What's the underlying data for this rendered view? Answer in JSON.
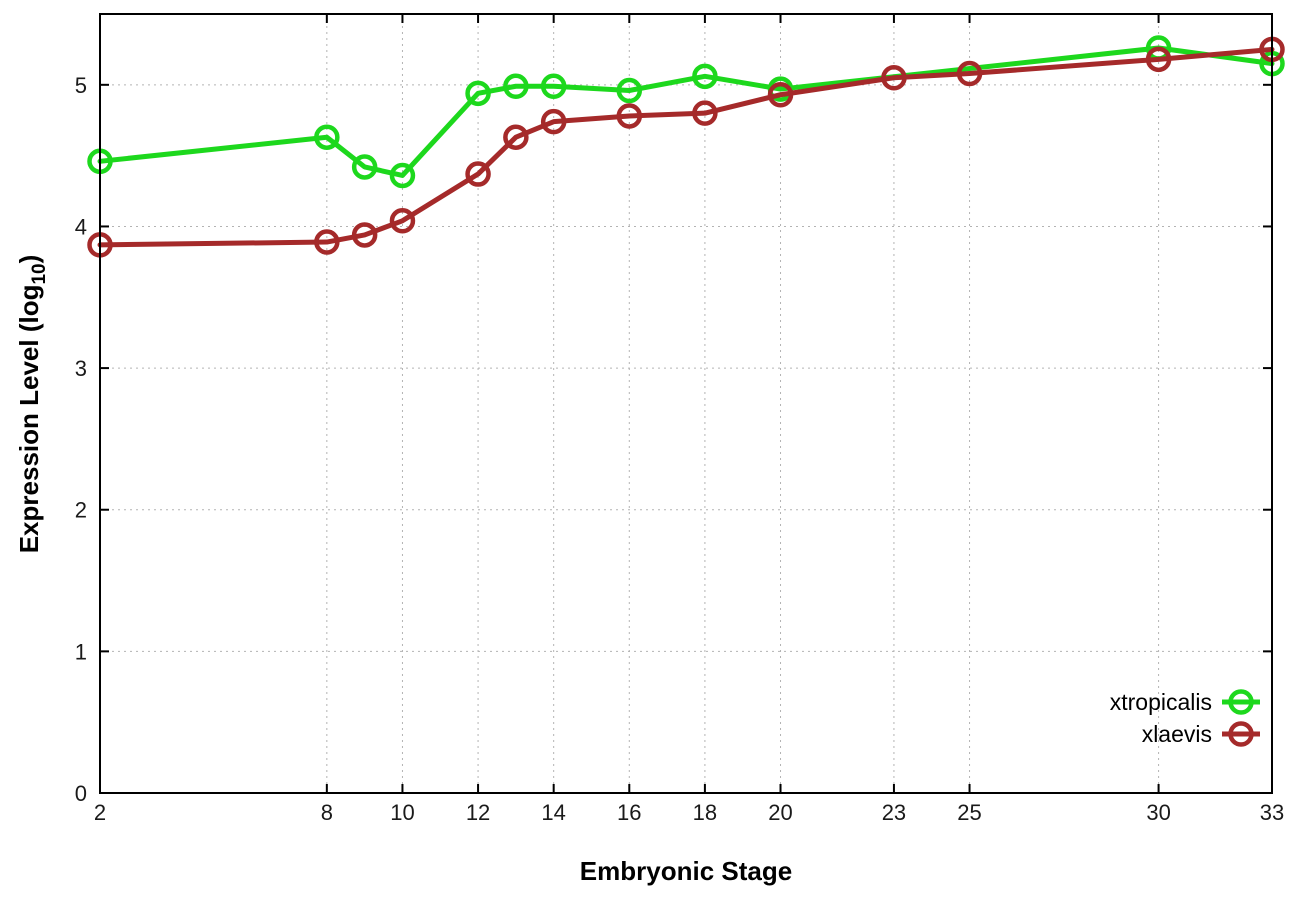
{
  "chart_data": {
    "type": "line",
    "title": "",
    "xlabel": "Embryonic Stage",
    "ylabel": "Expression Level (log10)",
    "ylabel_parts": {
      "main": "Expression Level (log",
      "sub": "10",
      "close": ")"
    },
    "xlim": [
      2,
      33
    ],
    "ylim": [
      0,
      5.5
    ],
    "xticks": [
      2,
      8,
      10,
      12,
      14,
      16,
      18,
      20,
      23,
      25,
      30,
      33
    ],
    "yticks": [
      0,
      1,
      2,
      3,
      4,
      5
    ],
    "grid": true,
    "grid_style": "dotted",
    "marker": "open-circle",
    "legend_position": "bottom-right-inside",
    "background_color": "#ffffff",
    "series": [
      {
        "name": "xtropicalis",
        "color": "#1dd81d",
        "x": [
          2,
          8,
          9,
          10,
          12,
          13,
          14,
          16,
          18,
          20,
          30,
          33
        ],
        "y": [
          4.46,
          4.63,
          4.42,
          4.36,
          4.94,
          4.99,
          4.99,
          4.96,
          5.06,
          4.97,
          5.26,
          5.15
        ]
      },
      {
        "name": "xlaevis",
        "color": "#a52a2a",
        "x": [
          2,
          8,
          9,
          10,
          12,
          13,
          14,
          16,
          18,
          20,
          23,
          25,
          30,
          33
        ],
        "y": [
          3.87,
          3.89,
          3.94,
          4.04,
          4.37,
          4.63,
          4.74,
          4.78,
          4.8,
          4.93,
          5.05,
          5.08,
          5.18,
          5.25
        ]
      }
    ]
  }
}
